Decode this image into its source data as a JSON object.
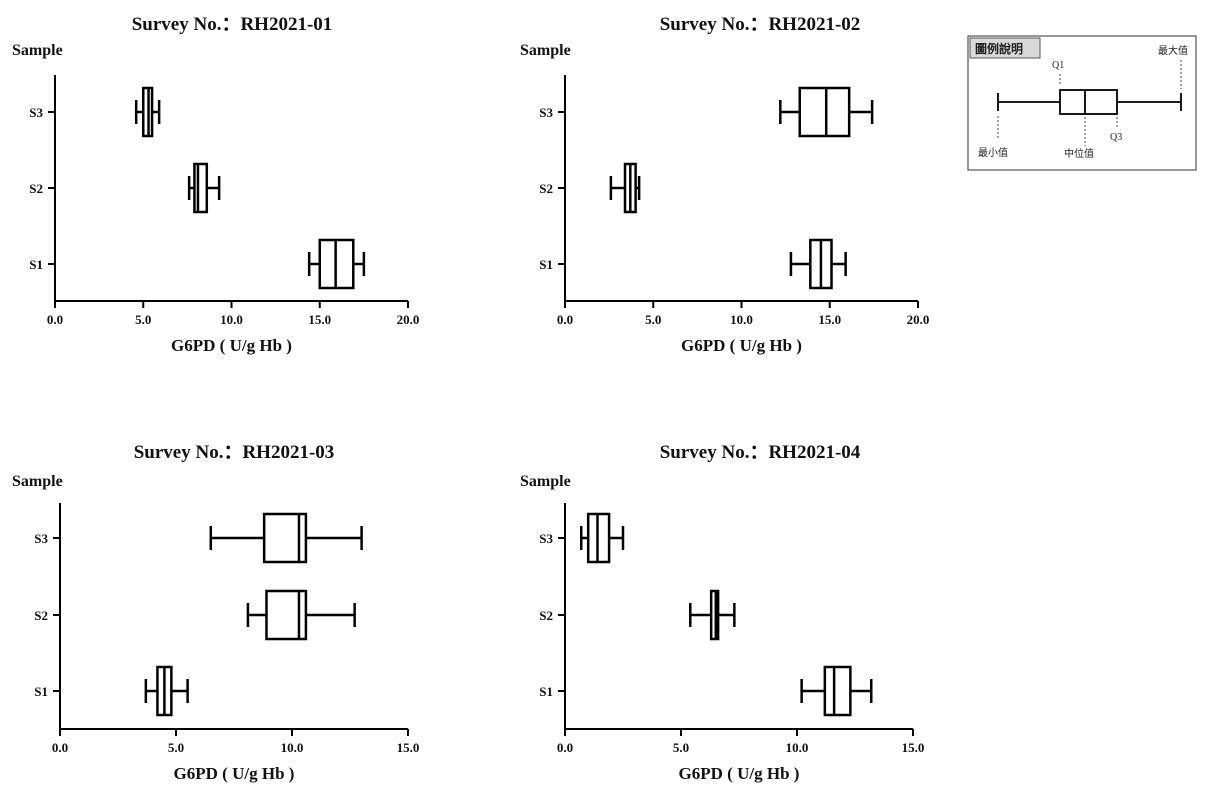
{
  "legend": {
    "title": "圖例說明",
    "labels": {
      "q1": "Q1",
      "q3": "Q3",
      "max": "最大值",
      "min": "最小值",
      "median": "中位值"
    }
  },
  "chart_data": [
    {
      "type": "box",
      "title": "Survey No.：RH2021-01",
      "ylabel": "Sample",
      "xlabel": "G6PD ( U/g Hb )",
      "xlim": [
        0,
        20
      ],
      "xticks": [
        "0.0",
        "5.0",
        "10.0",
        "15.0",
        "20.0"
      ],
      "categories": [
        "S1",
        "S2",
        "S3"
      ],
      "boxes": [
        {
          "sample": "S1",
          "min": 14.4,
          "q1": 15.0,
          "median": 15.9,
          "q3": 16.9,
          "max": 17.5
        },
        {
          "sample": "S2",
          "min": 7.6,
          "q1": 7.9,
          "median": 8.1,
          "q3": 8.6,
          "max": 9.3
        },
        {
          "sample": "S3",
          "min": 4.6,
          "q1": 5.0,
          "median": 5.3,
          "q3": 5.5,
          "max": 5.9
        }
      ]
    },
    {
      "type": "box",
      "title": "Survey No.：RH2021-02",
      "ylabel": "Sample",
      "xlabel": "G6PD ( U/g Hb )",
      "xlim": [
        0,
        20
      ],
      "xticks": [
        "0.0",
        "5.0",
        "10.0",
        "15.0",
        "20.0"
      ],
      "categories": [
        "S1",
        "S2",
        "S3"
      ],
      "boxes": [
        {
          "sample": "S1",
          "min": 12.8,
          "q1": 13.9,
          "median": 14.5,
          "q3": 15.1,
          "max": 15.9
        },
        {
          "sample": "S2",
          "min": 2.6,
          "q1": 3.4,
          "median": 3.7,
          "q3": 4.0,
          "max": 4.2
        },
        {
          "sample": "S3",
          "min": 12.2,
          "q1": 13.3,
          "median": 14.8,
          "q3": 16.1,
          "max": 17.4
        }
      ]
    },
    {
      "type": "box",
      "title": "Survey No.：RH2021-03",
      "ylabel": "Sample",
      "xlabel": "G6PD ( U/g Hb )",
      "xlim": [
        0,
        15
      ],
      "xticks": [
        "0.0",
        "5.0",
        "10.0",
        "15.0"
      ],
      "categories": [
        "S1",
        "S2",
        "S3"
      ],
      "boxes": [
        {
          "sample": "S1",
          "min": 3.7,
          "q1": 4.2,
          "median": 4.5,
          "q3": 4.8,
          "max": 5.5
        },
        {
          "sample": "S2",
          "min": 8.1,
          "q1": 8.9,
          "median": 10.3,
          "q3": 10.6,
          "max": 12.7
        },
        {
          "sample": "S3",
          "min": 6.5,
          "q1": 8.8,
          "median": 10.3,
          "q3": 10.6,
          "max": 13.0
        }
      ]
    },
    {
      "type": "box",
      "title": "Survey No.：RH2021-04",
      "ylabel": "Sample",
      "xlabel": "G6PD ( U/g Hb )",
      "xlim": [
        0,
        15
      ],
      "xticks": [
        "0.0",
        "5.0",
        "10.0",
        "15.0"
      ],
      "categories": [
        "S1",
        "S2",
        "S3"
      ],
      "boxes": [
        {
          "sample": "S1",
          "min": 10.2,
          "q1": 11.2,
          "median": 11.6,
          "q3": 12.3,
          "max": 13.2
        },
        {
          "sample": "S2",
          "min": 5.4,
          "q1": 6.3,
          "median": 6.5,
          "q3": 6.6,
          "max": 7.3
        },
        {
          "sample": "S3",
          "min": 0.7,
          "q1": 1.0,
          "median": 1.4,
          "q3": 1.9,
          "max": 2.5
        }
      ]
    }
  ]
}
